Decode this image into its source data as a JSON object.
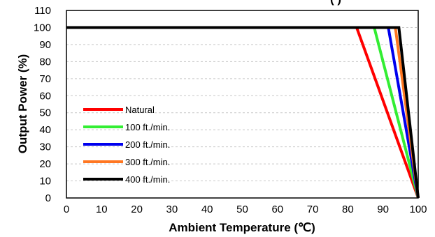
{
  "chart_data": {
    "type": "line",
    "title": "(         )",
    "xlabel": "Ambient Temperature (℃)",
    "ylabel": "Output Power (%)",
    "xlim": [
      0,
      100
    ],
    "ylim": [
      0,
      110
    ],
    "x_ticks": [
      "0",
      "10",
      "20",
      "30",
      "40",
      "50",
      "60",
      "70",
      "80",
      "90",
      "100"
    ],
    "y_ticks": [
      "0",
      "10",
      "20",
      "30",
      "40",
      "50",
      "60",
      "70",
      "80",
      "90",
      "100",
      "110"
    ],
    "grid": true,
    "legend_position": "lower-left",
    "series": [
      {
        "name": "Natural",
        "color": "#ff0000",
        "points": [
          [
            0,
            100
          ],
          [
            82.5,
            100
          ],
          [
            100,
            0
          ]
        ]
      },
      {
        "name": "100 ft./min.",
        "color": "#33ee33",
        "points": [
          [
            0,
            100
          ],
          [
            87.5,
            100
          ],
          [
            100,
            0
          ]
        ]
      },
      {
        "name": "200 ft./min.",
        "color": "#0000ee",
        "points": [
          [
            0,
            100
          ],
          [
            91.5,
            100
          ],
          [
            100,
            0
          ]
        ]
      },
      {
        "name": "300 ft./min.",
        "color": "#ff7722",
        "points": [
          [
            0,
            100
          ],
          [
            93.5,
            100
          ],
          [
            100,
            0
          ]
        ]
      },
      {
        "name": "400 ft./min.",
        "color": "#000000",
        "points": [
          [
            0,
            100
          ],
          [
            94.5,
            100
          ],
          [
            100,
            0
          ]
        ]
      }
    ]
  }
}
